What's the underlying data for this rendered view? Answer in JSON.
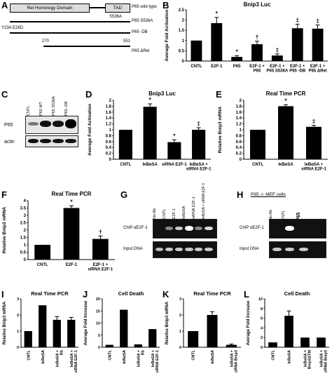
{
  "panel_letters": [
    "A",
    "B",
    "C",
    "D",
    "E",
    "F",
    "G",
    "H",
    "I",
    "J",
    "K",
    "L"
  ],
  "A": {
    "domain1": "Rel Homology Domain",
    "domain2": "TAD",
    "constructs": [
      "P65 wild type",
      "P65 S536A",
      "P65 -DB",
      "P65 ΔRel"
    ],
    "site": "S536A",
    "mutations": "Y23A    E26D",
    "rel_start": "270",
    "rel_end": "551"
  },
  "colors": {
    "bar": "#000000",
    "blot_bg": "#e6e6e6",
    "gel_bg": "#111111"
  },
  "chart_data": [
    {
      "id": "B",
      "type": "bar",
      "title": "Bnip3 Luc",
      "ylabel": "Average Fold Activation",
      "ylim": [
        0,
        2.5
      ],
      "yticks": [
        "0",
        "0.5",
        "1",
        "1.5",
        "2",
        "2.5"
      ],
      "categories": [
        "CNTL",
        "E2F-1",
        "P65",
        "E2F-1 + P65",
        "E2F-1 + P65 S536A",
        "E2F-1 + P65 -DB",
        "E2F-1 + P65 ΔRel"
      ],
      "values": [
        1.0,
        1.85,
        0.2,
        0.82,
        0.27,
        1.6,
        1.58
      ],
      "errors": [
        0,
        0.28,
        0.06,
        0.15,
        0.08,
        0.2,
        0.18
      ],
      "markers": [
        "",
        "*",
        "*",
        "†",
        "‡",
        "‡",
        "‡"
      ]
    },
    {
      "id": "D",
      "type": "bar",
      "title": "Bnip3 Luc",
      "ylabel": "Average Fold Activation",
      "ylim": [
        0,
        2
      ],
      "yticks": [
        "0",
        "0.2",
        "0.4",
        "0.6",
        "0.8",
        "1",
        "1.2",
        "1.4",
        "1.6",
        "1.8",
        "2"
      ],
      "categories": [
        "CNTL",
        "IκBαSA",
        "siRNA E2F-1",
        "IκBαSA + siRNA E2F-1"
      ],
      "values": [
        1.0,
        1.78,
        0.58,
        1.0
      ],
      "errors": [
        0,
        0.1,
        0.08,
        0.07
      ],
      "markers": [
        "",
        "*",
        "*",
        "‡"
      ]
    },
    {
      "id": "E",
      "type": "bar",
      "title": "Real Time PCR",
      "ylabel": "Relative Bnip3 mRNA",
      "ylim": [
        0,
        2
      ],
      "yticks": [
        "0",
        "0.2",
        "0.4",
        "0.6",
        "0.8",
        "1",
        "1.2",
        "1.4",
        "1.6",
        "1.8",
        "2"
      ],
      "categories": [
        "CNTL",
        "IκBαSA",
        "IκBαSA + siRNA E2F-1"
      ],
      "values": [
        1.0,
        1.8,
        1.1
      ],
      "errors": [
        0,
        0.05,
        0.05
      ],
      "markers": [
        "",
        "*",
        "‡"
      ]
    },
    {
      "id": "F",
      "type": "bar",
      "title": "Real Time PCR",
      "ylabel": "Relative Bnip3 mRNA",
      "ylim": [
        0,
        4
      ],
      "yticks": [
        "0",
        "0.5",
        "1",
        "1.5",
        "2",
        "2.5",
        "3",
        "3.5",
        "4"
      ],
      "categories": [
        "CNTL",
        "E2F-1",
        "E2F-1 + siRNA E2F-1"
      ],
      "values": [
        1.0,
        3.5,
        1.4
      ],
      "errors": [
        0,
        0.15,
        0.2
      ],
      "markers": [
        "",
        "*",
        "†"
      ]
    },
    {
      "id": "I",
      "type": "bar",
      "title": "Real Time PCR",
      "ylabel": "Relative Bnip3 mRNA",
      "ylim": [
        0,
        3
      ],
      "yticks": [
        "0",
        "1",
        "2",
        "3"
      ],
      "categories": [
        "CNTL",
        "IκBαSA",
        "IκBαSA + Rb",
        "IκBαSA + siRNA E2F-1"
      ],
      "values": [
        1.0,
        2.6,
        1.7,
        1.7
      ],
      "errors": [
        0,
        0,
        0.2,
        0.15
      ],
      "markers": [
        "",
        "",
        "",
        ""
      ]
    },
    {
      "id": "J",
      "type": "bar",
      "title": "Cell Death",
      "ylabel": "Average Fold Increase",
      "ylim": [
        0,
        20
      ],
      "yticks": [
        "0",
        "5",
        "10",
        "15",
        "20"
      ],
      "categories": [
        "CNTL",
        "IκBαSA",
        "IκBαSA + Rb",
        "IκBαSA + siRNA E2F-1"
      ],
      "values": [
        1.0,
        15.5,
        1.2,
        7.5
      ],
      "errors": [
        0,
        0,
        0,
        0
      ],
      "markers": [
        "",
        "",
        "",
        ""
      ]
    },
    {
      "id": "K",
      "type": "bar",
      "title": "Real Time PCR",
      "ylabel": "Relative Bnip3 mRNA",
      "ylim": [
        0,
        3
      ],
      "yticks": [
        "0",
        "1",
        "2",
        "3"
      ],
      "categories": [
        "CNTL",
        "IκBαSA",
        "IκBαSA + siRNA Bnip3"
      ],
      "values": [
        1.0,
        2.0,
        0.15
      ],
      "errors": [
        0,
        0.2,
        0.05
      ],
      "markers": [
        "",
        "",
        ""
      ]
    },
    {
      "id": "L",
      "type": "bar",
      "title": "Cell Death",
      "ylabel": "Average Fold Increase",
      "ylim": [
        0,
        10
      ],
      "yticks": [
        "0",
        "2",
        "4",
        "6",
        "8",
        "10"
      ],
      "categories": [
        "CNTL",
        "IκBαSA",
        "IκBαSA + Bnip3ΔTM",
        "IκBαSA + siRNA Bnip3"
      ],
      "values": [
        1.0,
        6.5,
        2.0,
        2.0
      ],
      "errors": [
        0,
        1.0,
        0,
        0
      ],
      "markers": [
        "",
        "",
        "",
        ""
      ]
    }
  ],
  "C": {
    "lanes": [
      "CNTL",
      "P65 WT",
      "P65 S536A",
      "P65 -DB"
    ],
    "rows": [
      "P65",
      "actin"
    ]
  },
  "G": {
    "lanes": [
      "No Ab",
      "CNTL",
      "E2F-1",
      "IκBαSA",
      "siRNA E2F-1",
      "IκBαSA + siRNA E2F-1"
    ],
    "rows": [
      "ChIP αE2F-1",
      "Input DNA"
    ]
  },
  "H": {
    "title": "P65 -/- MEF cells",
    "lanes": [
      "No Ab",
      "CNTL",
      "P65"
    ],
    "rows": [
      "ChIP αE2F-1",
      "Input DNA"
    ]
  }
}
